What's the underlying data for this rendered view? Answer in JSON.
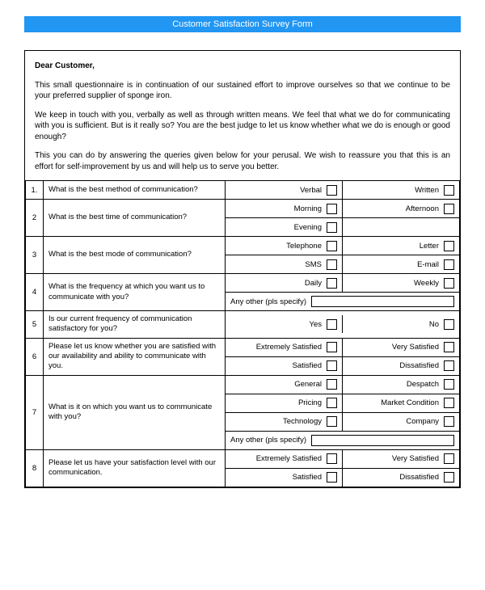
{
  "title": "Customer Satisfaction Survey Form",
  "intro": {
    "salutation": "Dear Customer,",
    "p1": "This small questionnaire is in continuation of our sustained effort to improve ourselves so that we continue to be your preferred supplier of sponge iron.",
    "p2": "We keep in touch with you, verbally as well as through written means. We feel that what we do for communicating with you is sufficient. But is it really so? You are the best judge to let us know whether what we do is enough or good enough?",
    "p3": "This you can do by answering the queries given below for your perusal. We wish to reassure you that this is an effort for self-improvement by us and will help us to serve you better."
  },
  "q1": {
    "num": "1.",
    "text": "What is the best method of communication?",
    "a": "Verbal",
    "b": "Written"
  },
  "q2": {
    "num": "2",
    "text": "What is the best time of communication?",
    "a": "Morning",
    "b": "Afternoon",
    "c": "Evening"
  },
  "q3": {
    "num": "3",
    "text": "What is the best mode of communication?",
    "a": "Telephone",
    "b": "Letter",
    "c": "SMS",
    "d": "E-mail"
  },
  "q4": {
    "num": "4",
    "text": "What is the frequency at which you want us to communicate with you?",
    "a": "Daily",
    "b": "Weekly",
    "specify": "Any other (pls specify)"
  },
  "q5": {
    "num": "5",
    "text": "Is our current frequency of communication satisfactory for you?",
    "a": "Yes",
    "b": "No"
  },
  "q6": {
    "num": "6",
    "text": "Please let us know whether you are satisfied with our availability and ability to communicate with you.",
    "a": "Extremely Satisfied",
    "b": "Very Satisfied",
    "c": "Satisfied",
    "d": "Dissatisfied"
  },
  "q7": {
    "num": "7",
    "text": "What is it on which you want us to communicate with you?",
    "a": "General",
    "b": "Despatch",
    "c": "Pricing",
    "d": "Market Condition",
    "e": "Technology",
    "f": "Company",
    "specify": "Any other (pls specify)"
  },
  "q8": {
    "num": "8",
    "text": "Please let us have your satisfaction level with our communication.",
    "a": "Extremely Satisfied",
    "b": "Very Satisfied",
    "c": "Satisfied",
    "d": "Dissatisfied"
  }
}
